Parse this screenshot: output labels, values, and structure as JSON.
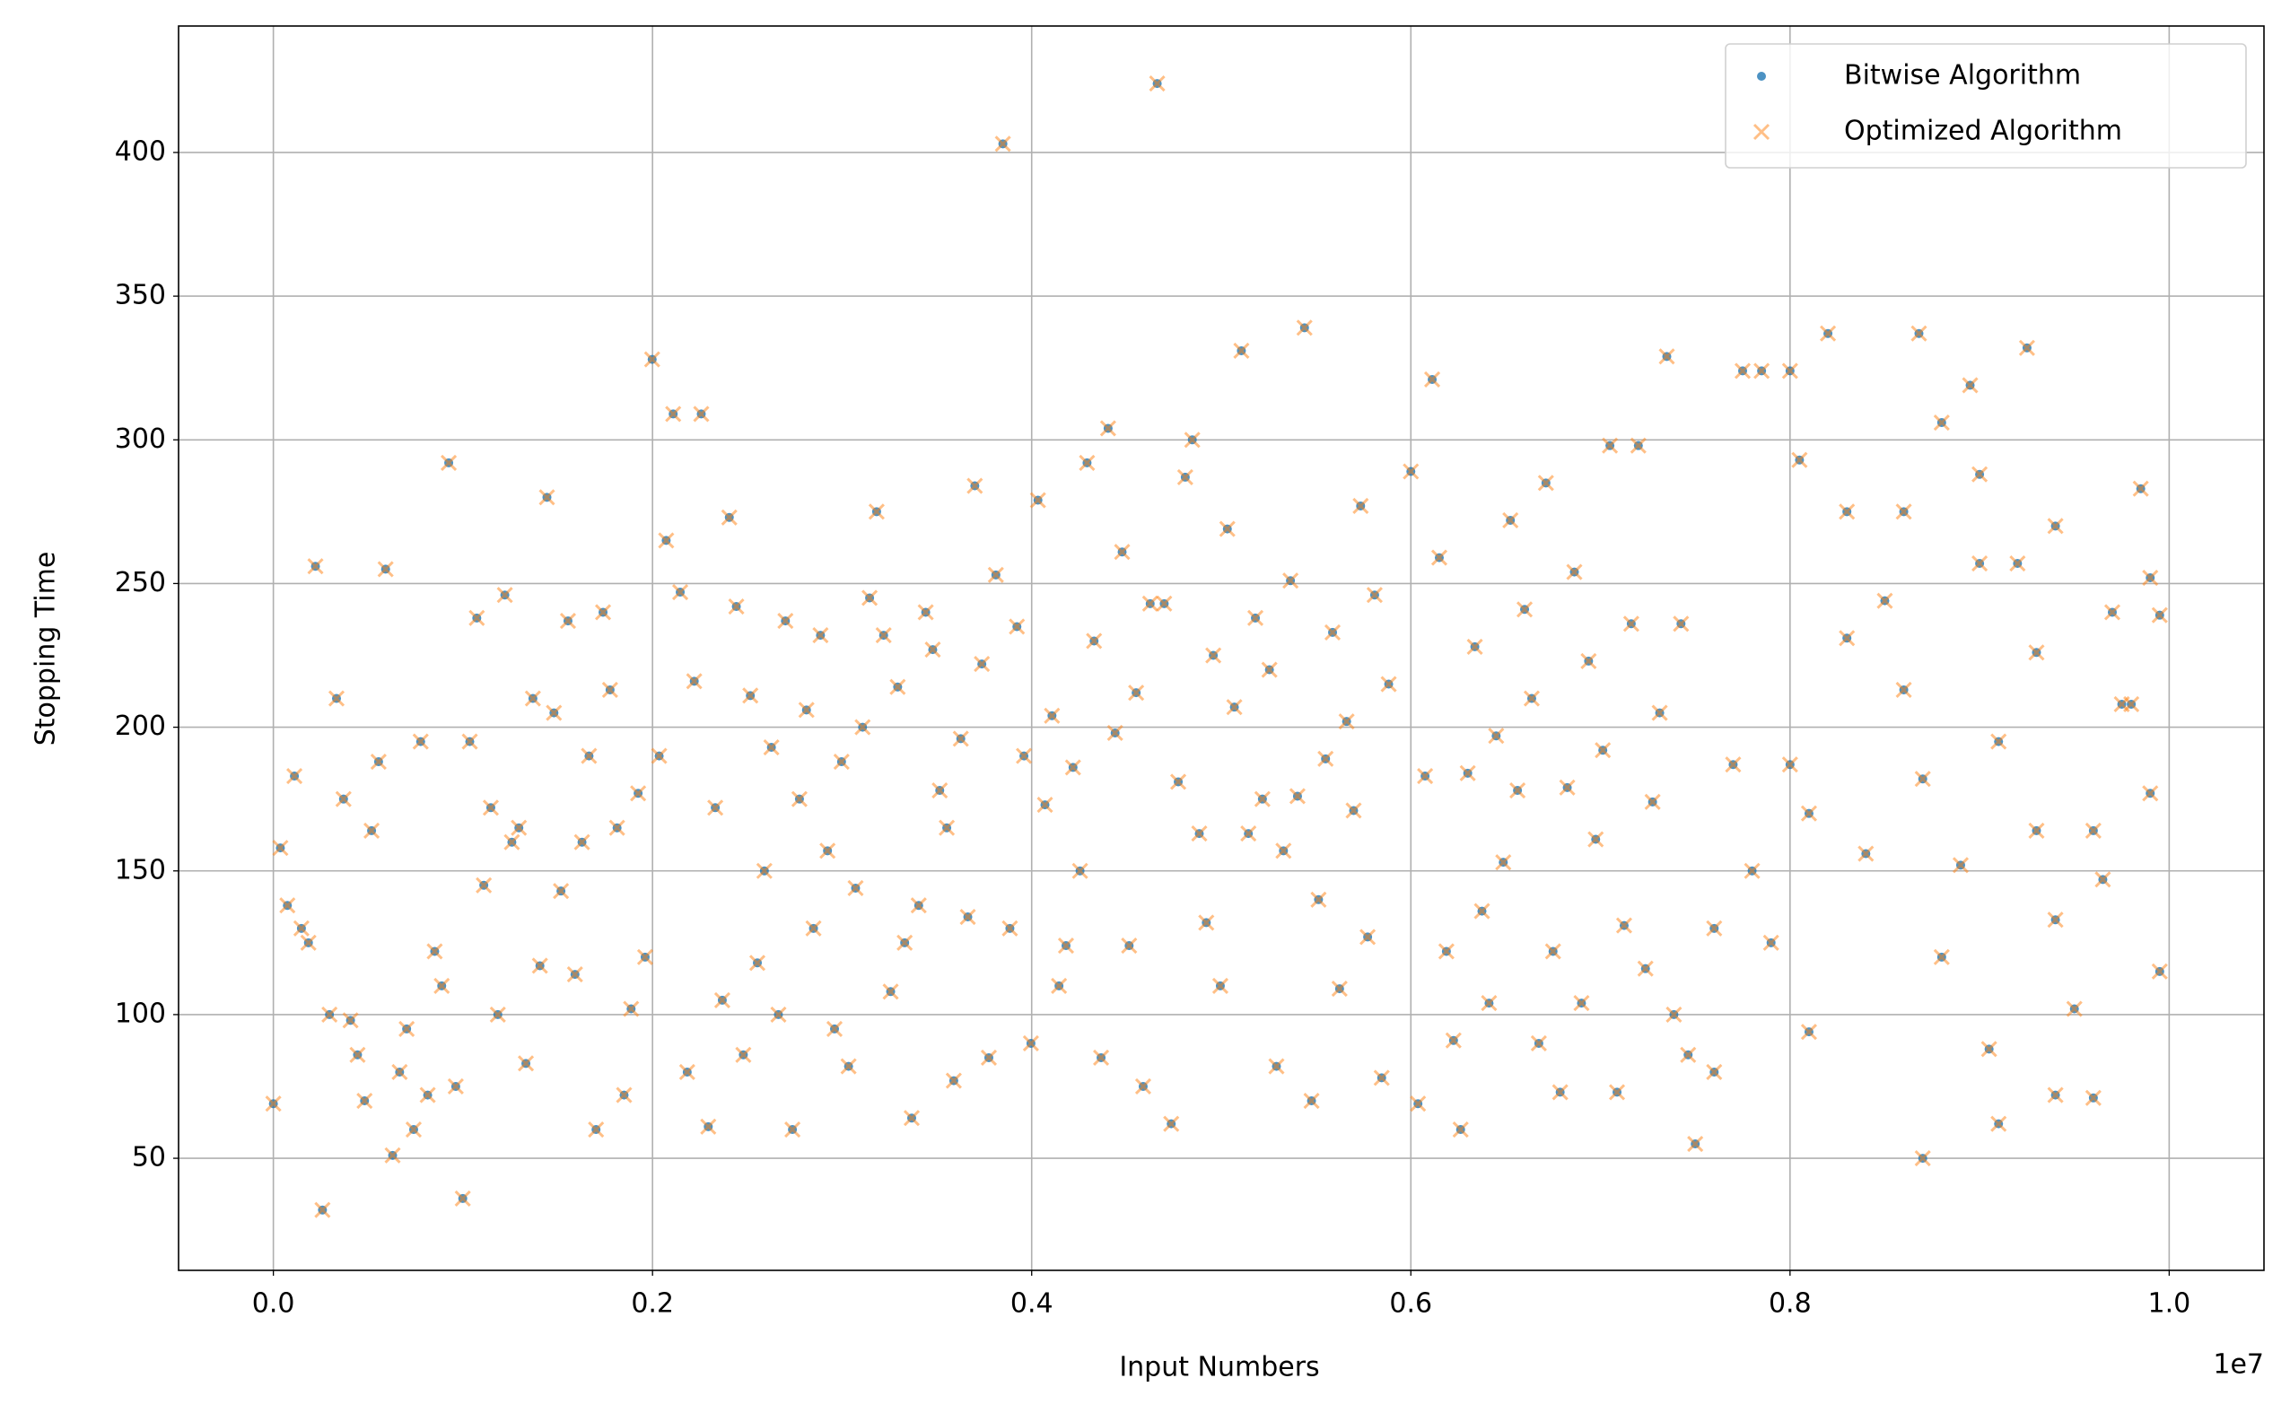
{
  "chart_data": {
    "type": "scatter",
    "xlabel": "Input Numbers",
    "ylabel": "Stopping Time",
    "x_offset_label": "1e7",
    "xlim": [
      -500000,
      10500000
    ],
    "xticks": [
      {
        "value": 0,
        "label": "0.0"
      },
      {
        "value": 2000000,
        "label": "0.2"
      },
      {
        "value": 4000000,
        "label": "0.4"
      },
      {
        "value": 6000000,
        "label": "0.6"
      },
      {
        "value": 8000000,
        "label": "0.8"
      },
      {
        "value": 10000000,
        "label": "1.0"
      }
    ],
    "ylim": [
      11,
      444
    ],
    "yticks": [
      50,
      100,
      150,
      200,
      250,
      300,
      350,
      400
    ],
    "grid": true,
    "legend": "upper right",
    "x": [
      0,
      37000,
      74000,
      111000,
      148000,
      185000,
      222000,
      259000,
      296000,
      333000,
      370000,
      407000,
      444000,
      481000,
      518000,
      555000,
      592000,
      629000,
      666000,
      703000,
      740000,
      777000,
      814000,
      851000,
      888000,
      925000,
      962000,
      999000,
      1036000,
      1073000,
      1110000,
      1147000,
      1184000,
      1221000,
      1258000,
      1295000,
      1332000,
      1369000,
      1406000,
      1443000,
      1480000,
      1517000,
      1554000,
      1591000,
      1628000,
      1665000,
      1702000,
      1739000,
      1776000,
      1813000,
      1850000,
      1887000,
      1924000,
      1961000,
      1998000,
      2035000,
      2072000,
      2109000,
      2146000,
      2183000,
      2220000,
      2257000,
      2294000,
      2331000,
      2368000,
      2405000,
      2442000,
      2479000,
      2516000,
      2553000,
      2590000,
      2627000,
      2664000,
      2701000,
      2738000,
      2775000,
      2812000,
      2849000,
      2886000,
      2923000,
      2960000,
      2997000,
      3034000,
      3071000,
      3108000,
      3145000,
      3182000,
      3219000,
      3256000,
      3293000,
      3330000,
      3367000,
      3404000,
      3441000,
      3478000,
      3515000,
      3552000,
      3589000,
      3626000,
      3663000,
      3700000,
      3737000,
      3774000,
      3811000,
      3848000,
      3885000,
      3922000,
      3959000,
      3996000,
      4033000,
      4070000,
      4107000,
      4144000,
      4181000,
      4218000,
      4255000,
      4292000,
      4329000,
      4366000,
      4403000,
      4440000,
      4477000,
      4514000,
      4551000,
      4588000,
      4625000,
      4662000,
      4699000,
      4736000,
      4773000,
      4810000,
      4847000,
      4884000,
      4921000,
      4958000,
      4995000,
      5032000,
      5069000,
      5106000,
      5143000,
      5180000,
      5217000,
      5254000,
      5291000,
      5328000,
      5365000,
      5402000,
      5439000,
      5476000,
      5513000,
      5550000,
      5587000,
      5624000,
      5661000,
      5698000,
      5735000,
      5772000,
      5809000,
      5846000,
      5883000,
      6000000,
      6037500,
      6075000,
      6112500,
      6150000,
      6187500,
      6225000,
      6262500,
      6300000,
      6337500,
      6375000,
      6412500,
      6450000,
      6487500,
      6525000,
      6562500,
      6600000,
      6637500,
      6675000,
      6712500,
      6750000,
      6787500,
      6825000,
      6862500,
      6900000,
      6937500,
      6975000,
      7012500,
      7050000,
      7087500,
      7125000,
      7162500,
      7200000,
      7237500,
      7275000,
      7312500,
      7350000,
      7387500,
      7425000,
      7462500,
      7750000,
      7850000,
      8000000,
      8200000,
      8680000,
      8950000,
      9250000,
      8800000,
      8050000,
      9850000,
      8600000,
      8300000,
      9000000,
      9400000,
      9700000,
      9900000,
      9950000,
      9600000,
      9750000,
      9900000,
      9950000,
      8700000,
      9050000,
      9100000,
      7500000,
      7600000,
      8100000,
      9400000,
      9600000,
      9650000,
      9300000,
      7600000,
      7700000,
      7800000,
      7900000,
      8000000,
      8100000,
      8300000,
      8400000,
      8500000,
      8600000,
      8700000,
      8800000,
      8900000,
      9000000,
      9100000,
      9200000,
      9300000,
      9400000,
      9500000,
      9800000
    ],
    "series": [
      {
        "name": "Bitwise Algorithm",
        "color": "#1f77b4",
        "marker": "o",
        "values": [
          69,
          158,
          138,
          183,
          130,
          125,
          256,
          32,
          100,
          210,
          175,
          98,
          86,
          70,
          164,
          188,
          255,
          51,
          80,
          95,
          60,
          195,
          72,
          122,
          110,
          292,
          75,
          36,
          195,
          238,
          145,
          172,
          100,
          246,
          160,
          165,
          83,
          210,
          117,
          280,
          205,
          143,
          237,
          114,
          160,
          190,
          60,
          240,
          213,
          165,
          72,
          102,
          177,
          120,
          328,
          190,
          265,
          309,
          247,
          80,
          216,
          309,
          61,
          172,
          105,
          273,
          242,
          86,
          211,
          118,
          150,
          193,
          100,
          237,
          60,
          175,
          206,
          130,
          232,
          157,
          95,
          188,
          82,
          144,
          200,
          245,
          275,
          232,
          108,
          214,
          125,
          64,
          138,
          240,
          227,
          178,
          165,
          77,
          196,
          134,
          284,
          222,
          85,
          253,
          403,
          130,
          235,
          190,
          90,
          279,
          173,
          204,
          110,
          124,
          186,
          150,
          292,
          230,
          85,
          304,
          198,
          261,
          124,
          212,
          75,
          243,
          424,
          243,
          62,
          181,
          287,
          300,
          163,
          132,
          225,
          110,
          269,
          207,
          331,
          163,
          238,
          175,
          220,
          82,
          157,
          251,
          176,
          339,
          70,
          140,
          189,
          233,
          109,
          202,
          171,
          277,
          127,
          246,
          78,
          215,
          289,
          69,
          183,
          321,
          259,
          122,
          91,
          60,
          184,
          228,
          136,
          104,
          197,
          153,
          272,
          178,
          241,
          210,
          90,
          285,
          122,
          73,
          179,
          254,
          104,
          223,
          161,
          192,
          298,
          73,
          131,
          236,
          298,
          116,
          174,
          205,
          329,
          100,
          236,
          86,
          324,
          324,
          324,
          337,
          337,
          319,
          332,
          306,
          293,
          283,
          275,
          275,
          288,
          270,
          240,
          252,
          239,
          164,
          208,
          177,
          115,
          50,
          88,
          62,
          55,
          80,
          94,
          72,
          71,
          147,
          164,
          130,
          187,
          150,
          125,
          187,
          170,
          231,
          156,
          244,
          213,
          182,
          120,
          152,
          257,
          195,
          257,
          226,
          133,
          102,
          208
        ]
      },
      {
        "name": "Optimized Algorithm",
        "color": "#ff7f0e",
        "marker": "x",
        "values": [
          69,
          158,
          138,
          183,
          130,
          125,
          256,
          32,
          100,
          210,
          175,
          98,
          86,
          70,
          164,
          188,
          255,
          51,
          80,
          95,
          60,
          195,
          72,
          122,
          110,
          292,
          75,
          36,
          195,
          238,
          145,
          172,
          100,
          246,
          160,
          165,
          83,
          210,
          117,
          280,
          205,
          143,
          237,
          114,
          160,
          190,
          60,
          240,
          213,
          165,
          72,
          102,
          177,
          120,
          328,
          190,
          265,
          309,
          247,
          80,
          216,
          309,
          61,
          172,
          105,
          273,
          242,
          86,
          211,
          118,
          150,
          193,
          100,
          237,
          60,
          175,
          206,
          130,
          232,
          157,
          95,
          188,
          82,
          144,
          200,
          245,
          275,
          232,
          108,
          214,
          125,
          64,
          138,
          240,
          227,
          178,
          165,
          77,
          196,
          134,
          284,
          222,
          85,
          253,
          403,
          130,
          235,
          190,
          90,
          279,
          173,
          204,
          110,
          124,
          186,
          150,
          292,
          230,
          85,
          304,
          198,
          261,
          124,
          212,
          75,
          243,
          424,
          243,
          62,
          181,
          287,
          300,
          163,
          132,
          225,
          110,
          269,
          207,
          331,
          163,
          238,
          175,
          220,
          82,
          157,
          251,
          176,
          339,
          70,
          140,
          189,
          233,
          109,
          202,
          171,
          277,
          127,
          246,
          78,
          215,
          289,
          69,
          183,
          321,
          259,
          122,
          91,
          60,
          184,
          228,
          136,
          104,
          197,
          153,
          272,
          178,
          241,
          210,
          90,
          285,
          122,
          73,
          179,
          254,
          104,
          223,
          161,
          192,
          298,
          73,
          131,
          236,
          298,
          116,
          174,
          205,
          329,
          100,
          236,
          86,
          324,
          324,
          324,
          337,
          337,
          319,
          332,
          306,
          293,
          283,
          275,
          275,
          288,
          270,
          240,
          252,
          239,
          164,
          208,
          177,
          115,
          50,
          88,
          62,
          55,
          80,
          94,
          72,
          71,
          147,
          164,
          130,
          187,
          150,
          125,
          187,
          170,
          231,
          156,
          244,
          213,
          182,
          120,
          152,
          257,
          195,
          257,
          226,
          133,
          102,
          208
        ]
      }
    ]
  }
}
